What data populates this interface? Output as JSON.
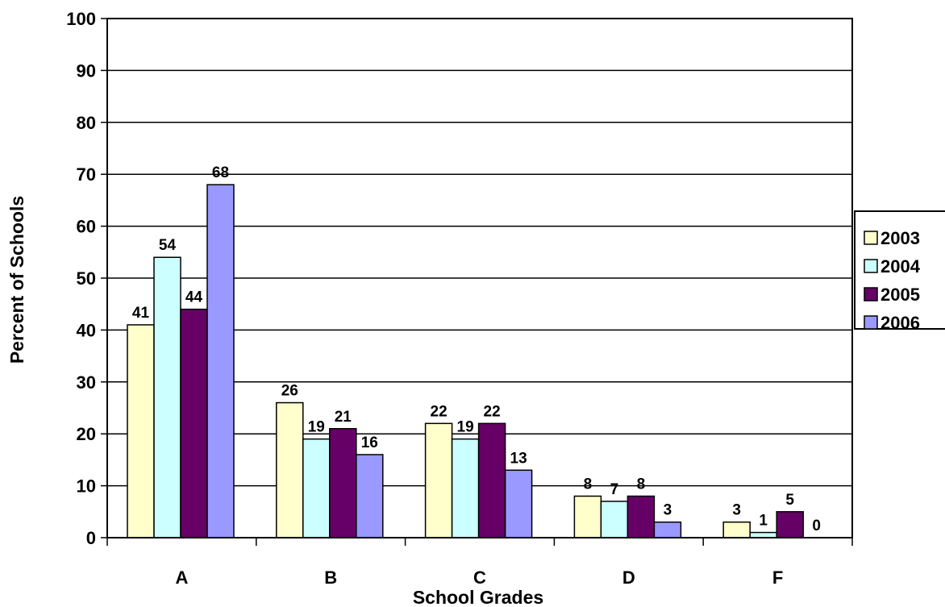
{
  "chart_data": {
    "type": "bar",
    "title": "",
    "xlabel": "School Grades",
    "ylabel": "Percent of Schools",
    "categories": [
      "A",
      "B",
      "C",
      "D",
      "F"
    ],
    "series": [
      {
        "name": "2003",
        "color": "#FFFFCC",
        "values": [
          41,
          26,
          22,
          8,
          3
        ]
      },
      {
        "name": "2004",
        "color": "#CCFFFF",
        "values": [
          54,
          19,
          19,
          7,
          1
        ]
      },
      {
        "name": "2005",
        "color": "#660066",
        "values": [
          44,
          21,
          22,
          8,
          5
        ]
      },
      {
        "name": "2006",
        "color": "#9999FF",
        "values": [
          68,
          16,
          13,
          3,
          0
        ]
      }
    ],
    "ylim": [
      0,
      100
    ],
    "yticks": [
      0,
      10,
      20,
      30,
      40,
      50,
      60,
      70,
      80,
      90,
      100
    ],
    "grid": true,
    "legend": "right",
    "data_labels": true
  }
}
